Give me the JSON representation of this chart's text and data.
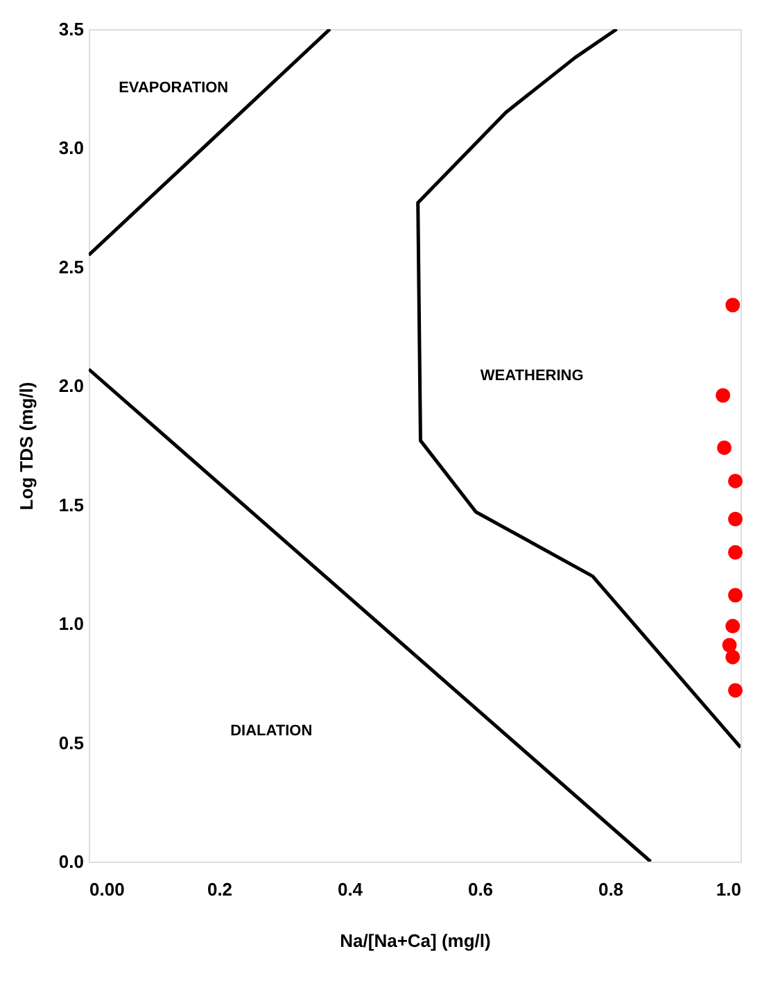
{
  "chart_data": {
    "type": "scatter",
    "xlabel": "Na/[Na+Ca] (mg/l)",
    "ylabel": "Log TDS (mg/l)",
    "xlim": [
      0,
      1
    ],
    "xticks": [
      {
        "value": 0,
        "label": "0.00"
      },
      0.2,
      0.4,
      0.6,
      0.8,
      {
        "value": 1,
        "label": "1.0"
      }
    ],
    "ylim": [
      0,
      3.5
    ],
    "yticks": [
      {
        "value": 0,
        "label": "0.0"
      },
      0.5,
      {
        "value": 1,
        "label": "1.0"
      },
      1.5,
      {
        "value": 2,
        "label": "2.0"
      },
      2.5,
      {
        "value": 3,
        "label": "3.0"
      },
      3.5
    ],
    "grid": false,
    "series": [
      {
        "type": "line",
        "color": "#000000",
        "x": [
          0,
          0.37
        ],
        "values": [
          2.55,
          3.5
        ]
      },
      {
        "type": "line",
        "color": "#000000",
        "x": [
          0.81,
          0.746,
          0.64,
          0.505,
          0.509,
          0.594,
          0.773,
          1.0
        ],
        "values": [
          3.5,
          3.38,
          3.15,
          2.77,
          1.77,
          1.47,
          1.2,
          0.48
        ]
      },
      {
        "type": "line",
        "color": "#000000",
        "x": [
          0,
          0.862
        ],
        "values": [
          2.07,
          0
        ]
      },
      {
        "color": "#ff0000",
        "marker": "circle",
        "x": [
          0.988,
          0.973,
          0.975,
          0.992,
          0.992,
          0.992,
          0.992,
          0.988,
          0.983,
          0.988,
          0.992
        ],
        "values": [
          2.34,
          1.96,
          1.74,
          1.6,
          1.44,
          1.3,
          1.12,
          0.99,
          0.91,
          0.86,
          0.72
        ]
      }
    ],
    "annotations": [
      "EVAPORATION",
      "WEATHERING",
      "DIALATION"
    ]
  }
}
